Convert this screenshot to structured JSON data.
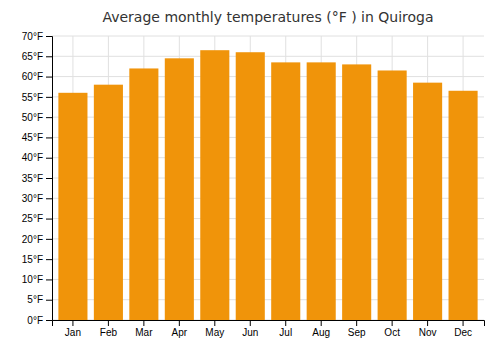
{
  "chart_data": {
    "type": "bar",
    "title": "Average monthly temperatures (°F ) in Quiroga",
    "categories": [
      "Jan",
      "Feb",
      "Mar",
      "Apr",
      "May",
      "Jun",
      "Jul",
      "Aug",
      "Sep",
      "Oct",
      "Nov",
      "Dec"
    ],
    "values": [
      56.0,
      58.0,
      62.0,
      64.5,
      66.5,
      66.0,
      63.5,
      63.5,
      63.0,
      61.5,
      58.5,
      56.5
    ],
    "color": "#F0940A",
    "ylim": [
      0,
      70
    ],
    "yticks": [
      {
        "value": 0,
        "label": "0°F"
      },
      {
        "value": 5,
        "label": "5°F"
      },
      {
        "value": 10,
        "label": "10°F"
      },
      {
        "value": 15,
        "label": "15°F"
      },
      {
        "value": 20,
        "label": "20°F"
      },
      {
        "value": 25,
        "label": "25°F"
      },
      {
        "value": 30,
        "label": "30°F"
      },
      {
        "value": 35,
        "label": "35°F"
      },
      {
        "value": 40,
        "label": "40°F"
      },
      {
        "value": 45,
        "label": "45°F"
      },
      {
        "value": 50,
        "label": "50°F"
      },
      {
        "value": 55,
        "label": "55°F"
      },
      {
        "value": 60,
        "label": "60°F"
      },
      {
        "value": 65,
        "label": "65°F"
      },
      {
        "value": 70,
        "label": "70°F"
      }
    ],
    "grid": true
  }
}
